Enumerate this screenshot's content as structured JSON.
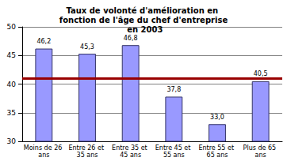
{
  "chart_data": {
    "type": "bar",
    "title": "Taux de volonté d'amélioration en fonction de l'âge du chef d'entreprise en 2003",
    "categories": [
      "Moins de 26 ans",
      "Entre 26 et 35 ans",
      "Entre 35 et 45 ans",
      "Entre 45 et 55 ans",
      "Entre 55 et 65 ans",
      "Plus de 65 ans"
    ],
    "values": [
      46.2,
      45.3,
      46.8,
      37.8,
      33.0,
      40.5
    ],
    "value_labels": [
      "46,2",
      "45,3",
      "46,8",
      "37,8",
      "33,0",
      "40,5"
    ],
    "data_labels": true,
    "color": "#9999ff",
    "reference_line": {
      "value": 41,
      "color": "#990000"
    },
    "ylim": [
      30,
      50
    ],
    "yticks": [
      30,
      35,
      40,
      45,
      50
    ],
    "grid": true
  }
}
